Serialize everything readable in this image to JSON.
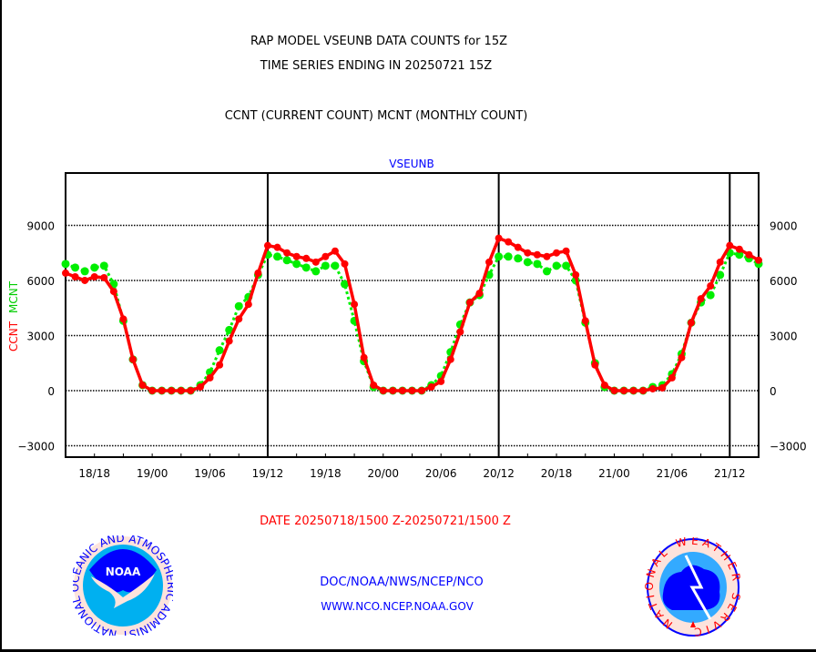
{
  "header": {
    "title": "RAP MODEL VSEUNB DATA COUNTS for 15Z",
    "subtitle": "TIME SERIES ENDING IN 20250721 15Z",
    "legend_text": "CCNT (CURRENT COUNT) MCNT (MONTHLY COUNT)"
  },
  "footer": {
    "date_range": "DATE 20250718/1500 Z-20250721/1500 Z",
    "org": "DOC/NOAA/NWS/NCEP/NCO",
    "url": "WWW.NCO.NCEP.NOAA.GOV",
    "noaa_logo_text": "NOAA",
    "noaa_logo_ring": "NATIONAL OCEANIC AND ATMOSPHERIC ADMINISTRATION U.S. DEPARTMENT OF COMMERCE",
    "nws_logo_ring": "NATIONAL WEATHER SERVICE"
  },
  "colors": {
    "ccnt": "#ff0000",
    "mcnt": "#00ee00",
    "panel_title": "#0000ff",
    "date": "#ff0000",
    "footer": "#0000ff"
  },
  "chart_data": {
    "type": "line",
    "title": "VSEUNB",
    "xlabel": "",
    "ylabel_parts": [
      "CCNT",
      "MCNT"
    ],
    "x_start": "2025071815",
    "x_step_hours": 1,
    "x_ticks": [
      "18/18",
      "19/00",
      "19/06",
      "19/12",
      "19/18",
      "20/00",
      "20/06",
      "20/12",
      "20/18",
      "21/00",
      "21/06",
      "21/12"
    ],
    "x_tick_hour_index": [
      3,
      9,
      15,
      21,
      27,
      33,
      39,
      45,
      51,
      57,
      63,
      69
    ],
    "bold_vlines_hour_index": [
      21,
      45,
      69
    ],
    "y_ticks": [
      9000,
      6000,
      3000,
      0,
      -3000
    ],
    "y_tick_labels": [
      "9000",
      "6000",
      "3000",
      "0",
      "−3000"
    ],
    "ylim": [
      -3620,
      11850
    ],
    "grid": true,
    "series": [
      {
        "name": "CCNT",
        "values": [
          6400,
          6200,
          6000,
          6200,
          6150,
          5400,
          3900,
          1700,
          300,
          0,
          0,
          0,
          0,
          0,
          200,
          700,
          1400,
          2700,
          3900,
          4700,
          6400,
          7900,
          7800,
          7500,
          7300,
          7200,
          7000,
          7300,
          7600,
          6900,
          4700,
          1800,
          300,
          0,
          0,
          0,
          0,
          0,
          200,
          500,
          1700,
          3200,
          4800,
          5300,
          7000,
          8300,
          8100,
          7800,
          7500,
          7400,
          7300,
          7500,
          7600,
          6300,
          3800,
          1400,
          300,
          0,
          0,
          0,
          0,
          100,
          150,
          700,
          1800,
          3700,
          5000,
          5700,
          7000,
          7900,
          7700,
          7400,
          7100
        ]
      },
      {
        "name": "MCNT",
        "values": [
          6900,
          6700,
          6500,
          6700,
          6800,
          5800,
          3800,
          1700,
          300,
          0,
          0,
          0,
          0,
          0,
          300,
          1000,
          2200,
          3300,
          4600,
          5100,
          6300,
          7400,
          7300,
          7100,
          6900,
          6700,
          6500,
          6800,
          6800,
          5800,
          3800,
          1600,
          200,
          0,
          0,
          0,
          0,
          0,
          300,
          800,
          2100,
          3600,
          4800,
          5200,
          6300,
          7300,
          7300,
          7200,
          7000,
          6900,
          6500,
          6800,
          6800,
          6000,
          3700,
          1500,
          200,
          0,
          0,
          0,
          0,
          200,
          300,
          900,
          2000,
          3700,
          4800,
          5200,
          6300,
          7500,
          7400,
          7200,
          6900
        ]
      }
    ]
  }
}
